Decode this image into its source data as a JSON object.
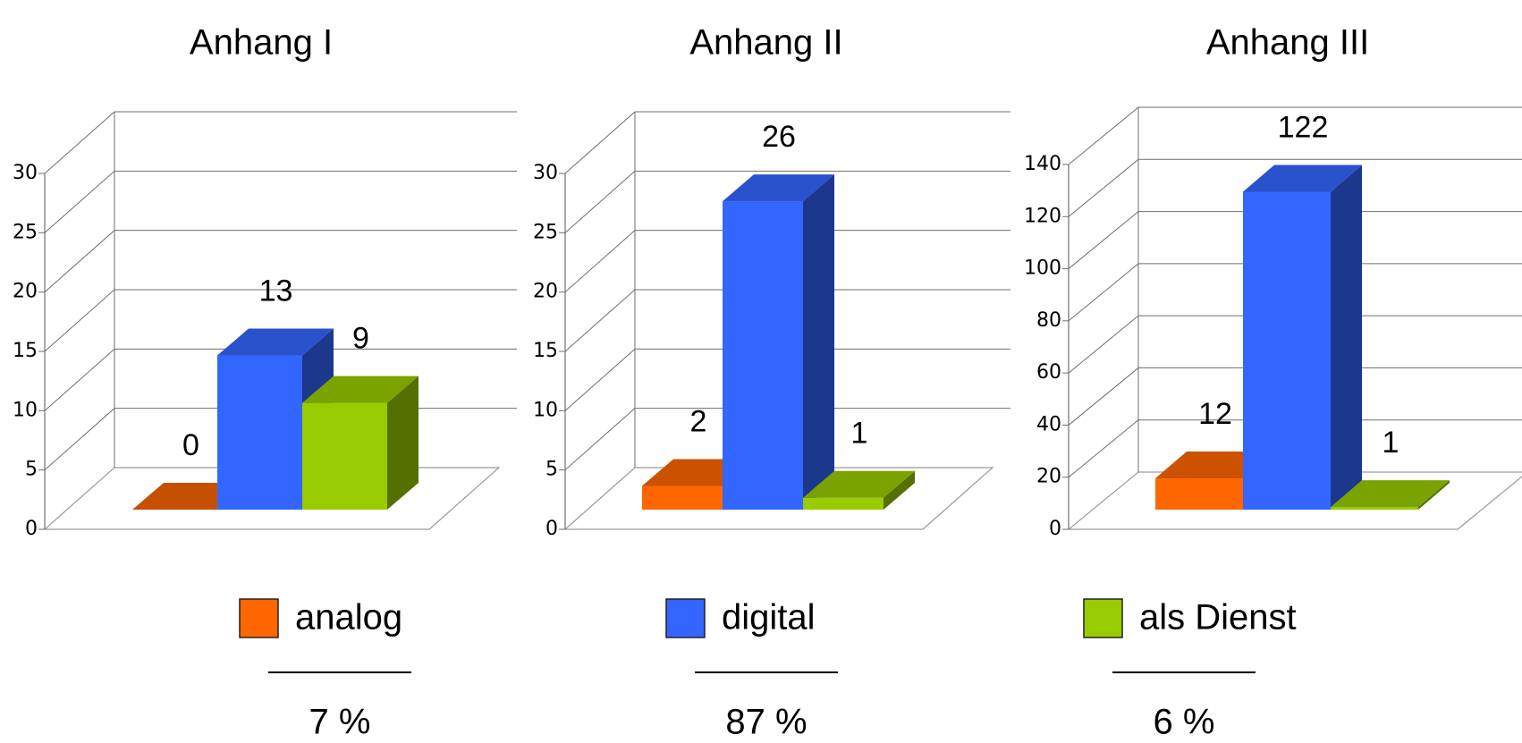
{
  "chart_data": [
    {
      "type": "bar",
      "title": "Anhang I",
      "categories": [
        "analog",
        "digital",
        "als Dienst"
      ],
      "values": [
        0,
        13,
        9
      ],
      "data_labels": [
        "0",
        "13",
        "9"
      ],
      "ylim": [
        0,
        30
      ],
      "yticks": [
        "0",
        "5",
        "10",
        "15",
        "20",
        "25",
        "30"
      ],
      "three_d": true,
      "grid": true
    },
    {
      "type": "bar",
      "title": "Anhang II",
      "categories": [
        "analog",
        "digital",
        "als Dienst"
      ],
      "values": [
        2,
        26,
        1
      ],
      "data_labels": [
        "2",
        "26",
        "1"
      ],
      "ylim": [
        0,
        30
      ],
      "yticks": [
        "0",
        "5",
        "10",
        "15",
        "20",
        "25",
        "30"
      ],
      "three_d": true,
      "grid": true
    },
    {
      "type": "bar",
      "title": "Anhang III",
      "categories": [
        "analog",
        "digital",
        "als Dienst"
      ],
      "values": [
        12,
        122,
        1
      ],
      "data_labels": [
        "12",
        "122",
        "1"
      ],
      "ylim": [
        0,
        140
      ],
      "yticks": [
        "0",
        "20",
        "40",
        "60",
        "80",
        "100",
        "120",
        "140"
      ],
      "three_d": true,
      "grid": true
    }
  ],
  "series_colors": {
    "analog": "#ff6600",
    "digital": "#3366ff",
    "als Dienst": "#99cc00"
  },
  "legend": [
    {
      "label": "analog",
      "color": "#ff6600",
      "percent": "7 %"
    },
    {
      "label": "digital",
      "color": "#3366ff",
      "percent": "87 %"
    },
    {
      "label": "als Dienst",
      "color": "#99cc00",
      "percent": "6 %"
    }
  ]
}
